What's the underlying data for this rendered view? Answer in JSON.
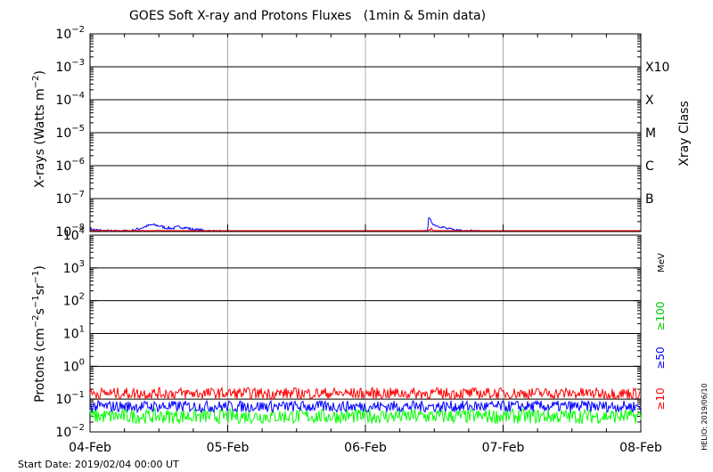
{
  "chart_data": [
    {
      "type": "line",
      "title": "GOES Soft X-ray and Protons Fluxes   (1min & 5min data)",
      "ylabel": "X-rays (Watts m^-2)",
      "yscale": "log",
      "ylim": [
        1e-08,
        0.01
      ],
      "ytick_exponents": [
        -2,
        -3,
        -4,
        -5,
        -6,
        -7,
        -8
      ],
      "xlim": [
        "2019-02-04",
        "2019-02-08"
      ],
      "grid": true,
      "class_axis": {
        "title": "Xray Class",
        "labels": [
          {
            "label": "X10",
            "value": 0.001
          },
          {
            "label": "X",
            "value": 0.0001
          },
          {
            "label": "M",
            "value": 1e-05
          },
          {
            "label": "C",
            "value": 1e-06
          },
          {
            "label": "B",
            "value": 1e-07
          }
        ]
      },
      "series": [
        {
          "color": "#0000ff",
          "x": [
            0.0,
            0.05,
            0.1,
            0.2,
            0.3,
            0.35,
            0.4,
            0.45,
            0.5,
            0.55,
            0.6,
            0.65,
            0.7,
            0.75,
            0.8,
            0.9,
            1.0,
            1.1,
            1.2,
            1.3,
            1.4,
            1.5,
            1.6,
            1.7,
            1.8,
            1.9,
            2.0,
            2.1,
            2.2,
            2.3,
            2.4,
            2.45,
            2.46,
            2.48,
            2.5,
            2.55,
            2.6,
            2.65,
            2.7,
            2.75,
            2.8,
            2.9,
            3.0,
            3.2,
            3.4,
            3.6,
            3.8,
            4.0
          ],
          "values": [
            1.2e-08,
            1.1e-08,
            1.05e-08,
            1e-08,
            1.05e-08,
            1.2e-08,
            1.4e-08,
            1.6e-08,
            1.5e-08,
            1.3e-08,
            1.25e-08,
            1.4e-08,
            1.3e-08,
            1.15e-08,
            1.1e-08,
            1e-08,
            9.5e-09,
            9.2e-09,
            9e-09,
            8.9e-09,
            9e-09,
            9.1e-09,
            9e-09,
            9e-09,
            9.1e-09,
            9e-09,
            8.9e-09,
            8.8e-09,
            8.9e-09,
            9e-09,
            9.5e-09,
            1e-08,
            2.5e-08,
            2e-08,
            1.6e-08,
            1.4e-08,
            1.2e-08,
            1.1e-08,
            1.15e-08,
            1.05e-08,
            1e-08,
            9.8e-09,
            9.5e-09,
            9.3e-09,
            9.2e-09,
            9.1e-09,
            9e-09,
            9e-09
          ]
        },
        {
          "color": "#ff0000",
          "x": [
            0.0,
            0.3,
            0.5,
            0.6,
            0.8,
            1.0,
            2.4,
            2.45,
            2.47,
            2.5,
            2.55,
            3.0,
            4.0
          ],
          "values": [
            9.8e-09,
            9.6e-09,
            9.9e-09,
            9.6e-09,
            9e-09,
            8e-09,
            8e-09,
            9e-09,
            1.2e-08,
            1e-08,
            9e-09,
            8e-09,
            8e-09
          ]
        }
      ]
    },
    {
      "type": "line",
      "ylabel": "Protons (cm^-2 s^-1 sr^-1)",
      "yscale": "log",
      "ylim": [
        0.01,
        10000
      ],
      "ytick_exponents": [
        4,
        3,
        2,
        1,
        0,
        -1,
        -2
      ],
      "xlim": [
        "2019-02-04",
        "2019-02-08"
      ],
      "xtick_labels": [
        "04-Feb",
        "05-Feb",
        "06-Feb",
        "07-Feb",
        "08-Feb"
      ],
      "grid": true,
      "threshold": {
        "value": 10,
        "style": "dashed"
      },
      "unit_label": "MeV",
      "series": [
        {
          "name": "≥10",
          "color": "#ff0000",
          "x": [
            0,
            4
          ],
          "values": [
            0.15,
            0.15
          ]
        },
        {
          "name": "≥50",
          "color": "#0000ff",
          "x": [
            0,
            4
          ],
          "values": [
            0.06,
            0.06
          ]
        },
        {
          "name": "≥100",
          "color": "#00ff00",
          "x": [
            0,
            4
          ],
          "values": [
            0.03,
            0.03
          ]
        }
      ]
    }
  ],
  "footer": {
    "start_date": "Start Date: 2019/02/04 00:00 UT"
  },
  "side_label": "HELIO: 2019/06/10"
}
